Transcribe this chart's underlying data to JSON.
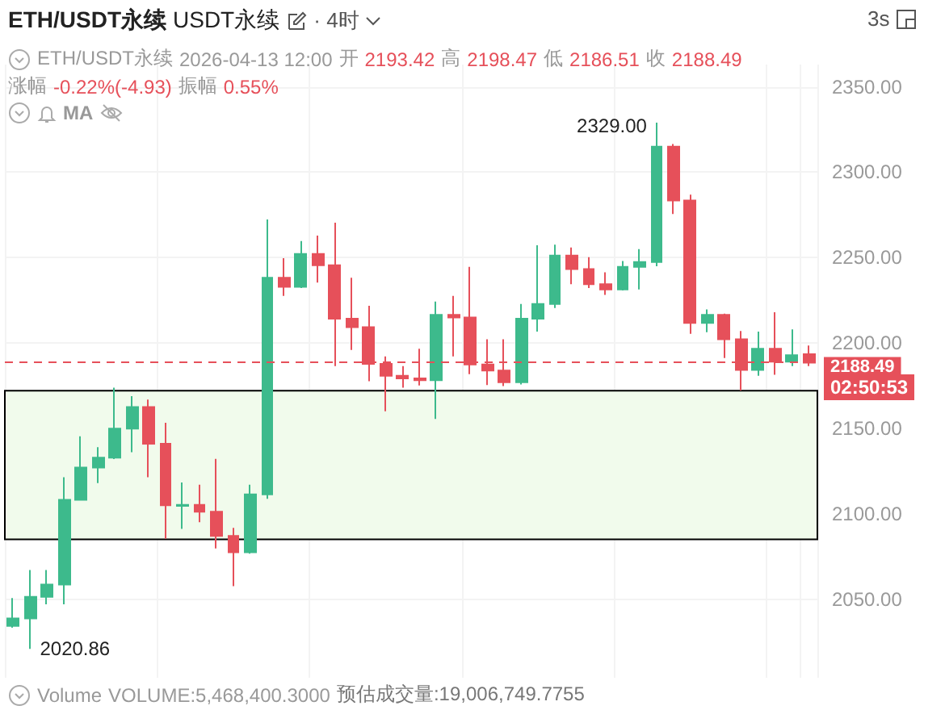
{
  "chart_data": {
    "type": "candlestick",
    "title": "ETH/USDT永续",
    "annotations": [
      "USDT永续",
      "· 4时",
      "3s",
      "ETH/USDT永续",
      "2026-04-13 12:00",
      "开",
      "2193.42",
      "高",
      "2198.47",
      "低",
      "2186.51",
      "收",
      "2188.49",
      "涨幅",
      "-0.22%(-4.93)",
      "振幅",
      "0.55%",
      "MA",
      "Volume",
      "VOLUME:5,468,400.3000",
      "预估成交量:19,006,749.7755",
      "02:50:53",
      "2329.00",
      "2020.86"
    ],
    "categories": [
      null,
      null,
      null,
      null,
      null,
      null,
      null,
      null,
      null,
      null,
      null,
      null,
      null,
      null,
      null,
      null,
      null,
      null,
      null,
      null,
      null,
      null,
      null,
      null,
      null,
      null,
      null,
      null,
      null,
      null,
      null,
      null,
      null,
      null,
      null,
      null,
      null,
      null,
      null,
      null,
      null,
      null,
      null,
      null,
      null,
      null,
      null,
      null
    ],
    "ohlc": [
      [
        2034.3,
        2050.7,
        2033.3,
        2038.7
      ],
      [
        2038.7,
        2067.1,
        2020.86,
        2051.3
      ],
      [
        2051.3,
        2067.1,
        2047.0,
        2058.6
      ],
      [
        2058.6,
        2121.4,
        2047.0,
        2108.2
      ],
      [
        2108.2,
        2145.4,
        2108.0,
        2127.1
      ],
      [
        2127.1,
        2139.0,
        2118.0,
        2132.8
      ],
      [
        2132.8,
        2173.8,
        2132.0,
        2149.8
      ],
      [
        2149.8,
        2168.8,
        2136.0,
        2162.5
      ],
      [
        2162.5,
        2166.9,
        2121.4,
        2141.0
      ],
      [
        2141.0,
        2153.3,
        2085.4,
        2105.0
      ],
      [
        2104.6,
        2118.3,
        2091.1,
        2105.2
      ],
      [
        2105.2,
        2117.0,
        2095.0,
        2101.2
      ],
      [
        2101.2,
        2132.1,
        2079.7,
        2087.0
      ],
      [
        2087.0,
        2091.7,
        2057.6,
        2077.5
      ],
      [
        2077.5,
        2117.0,
        2076.6,
        2111.3
      ],
      [
        2111.3,
        2272.3,
        2108.8,
        2238.2
      ],
      [
        2238.2,
        2249.6,
        2227.5,
        2232.9
      ],
      [
        2232.9,
        2259.7,
        2232.2,
        2252.1
      ],
      [
        2252.1,
        2262.8,
        2235.4,
        2245.5
      ],
      [
        2245.5,
        2270.4,
        2186.4,
        2214.2
      ],
      [
        2214.2,
        2238.2,
        2195.9,
        2209.2
      ],
      [
        2209.2,
        2221.8,
        2177.6,
        2187.7
      ],
      [
        2187.7,
        2192.1,
        2160.0,
        2180.8
      ],
      [
        2180.8,
        2186.4,
        2173.8,
        2179.2
      ],
      [
        2179.2,
        2196.6,
        2175.1,
        2178.2
      ],
      [
        2178.2,
        2224.3,
        2155.5,
        2216.4
      ],
      [
        2216.4,
        2227.5,
        2192.1,
        2214.9
      ],
      [
        2214.9,
        2244.5,
        2181.7,
        2187.4
      ],
      [
        2187.4,
        2202.2,
        2175.4,
        2183.9
      ],
      [
        2183.9,
        2202.2,
        2174.8,
        2177.0
      ],
      [
        2177.0,
        2222.8,
        2175.7,
        2214.2
      ],
      [
        2214.2,
        2257.2,
        2206.6,
        2222.8
      ],
      [
        2222.8,
        2257.5,
        2220.5,
        2251.2
      ],
      [
        2251.2,
        2255.9,
        2234.4,
        2243.3
      ],
      [
        2243.3,
        2250.2,
        2232.2,
        2234.4
      ],
      [
        2234.4,
        2241.4,
        2228.1,
        2231.3
      ],
      [
        2231.3,
        2248.0,
        2230.7,
        2244.5
      ],
      [
        2244.5,
        2255.0,
        2231.3,
        2247.4
      ],
      [
        2247.4,
        2329.0,
        2244.9,
        2314.9
      ],
      [
        2314.9,
        2316.5,
        2275.5,
        2283.4
      ],
      [
        2283.4,
        2286.8,
        2205.4,
        2211.7
      ],
      [
        2211.7,
        2219.6,
        2206.3,
        2216.4
      ],
      [
        2216.4,
        2217.1,
        2191.2,
        2202.2
      ],
      [
        2202.2,
        2207.0,
        2172.2,
        2184.2
      ],
      [
        2184.2,
        2206.7,
        2180.8,
        2196.6
      ],
      [
        2196.6,
        2218.0,
        2181.4,
        2189.0
      ],
      [
        2189.0,
        2207.9,
        2186.4,
        2192.8
      ],
      [
        2193.42,
        2198.47,
        2186.51,
        2188.49
      ]
    ],
    "colors": [
      "#3dba8c",
      "#3dba8c",
      "#3dba8c",
      "#3dba8c",
      "#3dba8c",
      "#3dba8c",
      "#3dba8c",
      "#3dba8c",
      "#e6505a",
      "#e6505a",
      "#3dba8c",
      "#e6505a",
      "#e6505a",
      "#e6505a",
      "#3dba8c",
      "#3dba8c",
      "#e6505a",
      "#3dba8c",
      "#e6505a",
      "#e6505a",
      "#e6505a",
      "#e6505a",
      "#e6505a",
      "#e6505a",
      "#e6505a",
      "#3dba8c",
      "#e6505a",
      "#e6505a",
      "#e6505a",
      "#e6505a",
      "#3dba8c",
      "#3dba8c",
      "#3dba8c",
      "#e6505a",
      "#e6505a",
      "#e6505a",
      "#3dba8c",
      "#3dba8c",
      "#3dba8c",
      "#e6505a",
      "#e6505a",
      "#3dba8c",
      "#e6505a",
      "#e6505a",
      "#3dba8c",
      "#e6505a",
      "#3dba8c",
      "#e6505a"
    ],
    "ylim": [
      2004,
      2363
    ],
    "yticks": [
      {
        "value": 2050,
        "label": "2050.00"
      },
      {
        "value": 2100,
        "label": "2100.00"
      },
      {
        "value": 2150,
        "label": "2150.00"
      },
      {
        "value": 2200,
        "label": "2200.00"
      },
      {
        "value": 2250,
        "label": "2250.00"
      },
      {
        "value": 2300,
        "label": "2300.00"
      },
      {
        "value": 2350,
        "label": "2350.00"
      }
    ],
    "ref_lines": [
      {
        "axis": "y",
        "value": 2188.49,
        "label": "2188.49",
        "color": "#e6505a",
        "line_style": "dashed"
      }
    ],
    "bands": [
      {
        "axis": "y",
        "from": 2085,
        "to": 2172,
        "color": "#f1fbec"
      }
    ],
    "grid": true,
    "tick_labels": "y"
  }
}
